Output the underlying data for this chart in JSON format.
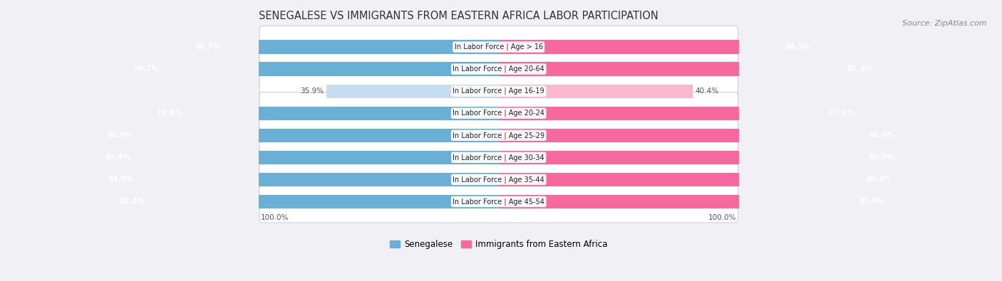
{
  "title": "SENEGALESE VS IMMIGRANTS FROM EASTERN AFRICA LABOR PARTICIPATION",
  "source": "Source: ZipAtlas.com",
  "categories": [
    "In Labor Force | Age > 16",
    "In Labor Force | Age 20-64",
    "In Labor Force | Age 16-19",
    "In Labor Force | Age 20-24",
    "In Labor Force | Age 25-29",
    "In Labor Force | Age 30-34",
    "In Labor Force | Age 35-44",
    "In Labor Force | Age 45-54"
  ],
  "senegalese_values": [
    66.7,
    79.7,
    35.9,
    74.8,
    85.0,
    85.4,
    84.9,
    82.4
  ],
  "eastern_africa_values": [
    68.5,
    81.3,
    40.4,
    77.5,
    86.0,
    85.9,
    85.4,
    83.9
  ],
  "senegalese_color_dark": "#6aafd6",
  "senegalese_color_light": "#c5ddef",
  "eastern_africa_color_dark": "#f7699e",
  "eastern_africa_color_light": "#f9b8ce",
  "background_color": "#f0f0f5",
  "bar_height": 0.62,
  "legend_labels": [
    "Senegalese",
    "Immigrants from Eastern Africa"
  ],
  "footer_value": "100.0%",
  "title_fontsize": 10.5,
  "source_fontsize": 8,
  "label_fontsize": 7.5,
  "cat_fontsize": 7
}
